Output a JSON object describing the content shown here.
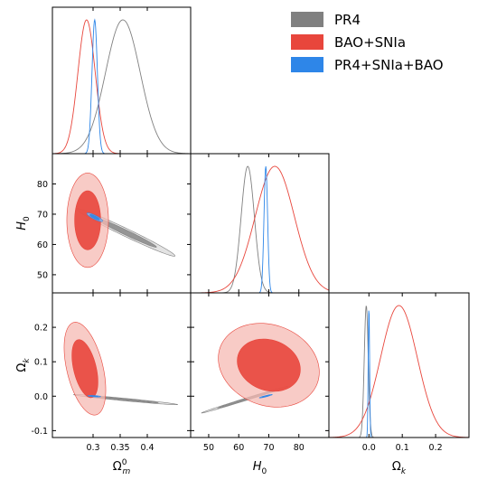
{
  "chart_data": {
    "type": "corner-plot",
    "parameters": [
      {
        "key": "om",
        "label_main": "Ω",
        "label_sub": "m",
        "label_sup": "0",
        "ticks": [
          0.3,
          0.35,
          0.4
        ],
        "tick_labels": [
          "0.3",
          "0.35",
          "0.4"
        ],
        "range": [
          0.225,
          0.48
        ]
      },
      {
        "key": "h0",
        "label_main": "H",
        "label_sub": "0",
        "ticks": [
          50,
          60,
          70,
          80
        ],
        "tick_labels": [
          "50",
          "60",
          "70",
          "80"
        ],
        "range": [
          44,
          90
        ]
      },
      {
        "key": "ok",
        "label_main": "Ω",
        "label_sub": "k",
        "ticks": [
          0.0,
          0.1,
          0.2
        ],
        "tick_labels": [
          "0.0",
          "0.1",
          "0.2"
        ],
        "tick_labels_y": [
          "-0.1",
          "0.0",
          "0.1",
          "0.2"
        ],
        "ticks_y": [
          -0.1,
          0.0,
          0.1,
          0.2
        ],
        "range": [
          -0.12,
          0.3
        ]
      }
    ],
    "series": [
      {
        "name": "PR4",
        "color": "#808080",
        "marginals": {
          "om": {
            "mean": 0.355,
            "sd": 0.032
          },
          "h0": {
            "mean": 63.0,
            "sd": 2.2
          },
          "ok": {
            "mean": -0.008,
            "sd": 0.006
          }
        },
        "contours": {
          "om_h0": {
            "center": [
              0.36,
              64
            ],
            "axes_1sig": [
              0.038,
              0.6
            ],
            "slope": -85
          },
          "om_ok": {
            "center": [
              0.36,
              -0.01
            ],
            "axes_1sig": [
              0.04,
              0.0015
            ],
            "slope": -0.15
          },
          "h0_ok": {
            "center": [
              62,
              -0.01
            ],
            "axes_1sig": [
              6,
              0.0015
            ],
            "slope": 0.0027
          }
        }
      },
      {
        "name": "BAO+SNIa",
        "color": "#e8463c",
        "marginals": {
          "om": {
            "mean": 0.288,
            "sd": 0.016
          },
          "h0": {
            "mean": 72.0,
            "sd": 6.5
          },
          "ok": {
            "mean": 0.09,
            "sd": 0.055
          }
        },
        "contours": {
          "om_h0": {
            "center": [
              0.29,
              68
            ],
            "axes_1sig": [
              0.016,
              6.5
            ],
            "slope": 0
          },
          "om_ok": {
            "center": [
              0.285,
              0.08
            ],
            "axes_1sig": [
              0.016,
              0.05
            ],
            "slope": -1.6
          },
          "h0_ok": {
            "center": [
              70,
              0.09
            ],
            "axes_1sig": [
              7,
              0.05
            ],
            "slope": -0.0012
          }
        }
      },
      {
        "name": "PR4+SNIa+BAO",
        "color": "#2e86e8",
        "marginals": {
          "om": {
            "mean": 0.303,
            "sd": 0.005
          },
          "h0": {
            "mean": 69.0,
            "sd": 0.6
          },
          "ok": {
            "mean": 0.0,
            "sd": 0.002
          }
        },
        "contours": {
          "om_h0": {
            "center": [
              0.303,
              69
            ],
            "axes_1sig": [
              0.006,
              0.3
            ],
            "slope": -85
          },
          "om_ok": {
            "center": [
              0.302,
              0.0
            ],
            "axes_1sig": [
              0.005,
              0.0008
            ],
            "slope": -0.1
          },
          "h0_ok": {
            "center": [
              69,
              0.0
            ],
            "axes_1sig": [
              0.9,
              0.0008
            ],
            "slope": 0.0022
          }
        }
      }
    ],
    "legend": {
      "placement": "top-right",
      "entries": [
        "PR4",
        "BAO+SNIa",
        "PR4+SNIa+BAO"
      ]
    }
  }
}
